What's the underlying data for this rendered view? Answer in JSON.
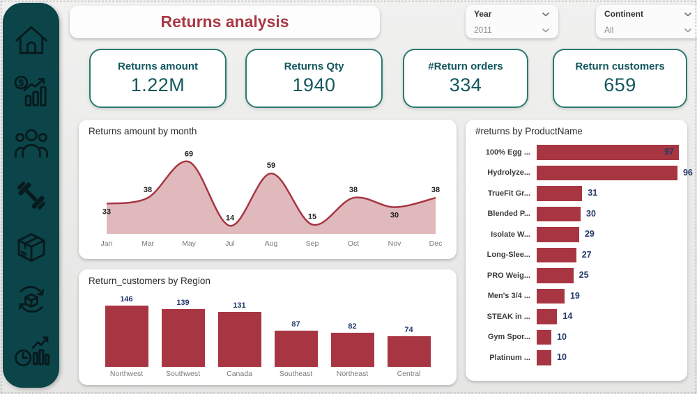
{
  "header": {
    "title": "Returns analysis"
  },
  "filters": {
    "year": {
      "label": "Year",
      "value": "2011"
    },
    "continent": {
      "label": "Continent",
      "value": "All"
    }
  },
  "sidebar": {
    "icons": [
      "home",
      "sales-finance",
      "customers",
      "fitness-products",
      "package",
      "product-returns",
      "history-stats"
    ]
  },
  "kpis": [
    {
      "label": "Returns amount",
      "value": "1.22M"
    },
    {
      "label": "Returns Qty",
      "value": "1940"
    },
    {
      "label": "#Return orders",
      "value": "334"
    },
    {
      "label": "Return customers",
      "value": "659"
    }
  ],
  "chart_data": [
    {
      "type": "area",
      "title": "Returns amount by month",
      "x": [
        "Jan",
        "Mar",
        "May",
        "Jul",
        "Aug",
        "Sep",
        "Oct",
        "Nov",
        "Dec"
      ],
      "values": [
        33,
        38,
        69,
        14,
        59,
        15,
        38,
        30,
        38
      ],
      "label_side": [
        "below",
        "above",
        "above",
        "above",
        "above",
        "above",
        "above",
        "below",
        "above"
      ],
      "ylim": [
        7,
        80
      ],
      "grid": false,
      "xlabel": "",
      "ylabel": ""
    },
    {
      "type": "bar",
      "title": "Return_customers by Region",
      "categories": [
        "Northwest",
        "Southwest",
        "Canada",
        "Southeast",
        "Northeast",
        "Central"
      ],
      "values": [
        146,
        139,
        131,
        87,
        82,
        74
      ],
      "ylim": [
        0,
        160
      ],
      "grid": false
    },
    {
      "type": "bar-horizontal",
      "title": "#returns by ProductName",
      "categories": [
        "100% Egg ...",
        "Hydrolyze...",
        "TrueFit Gr...",
        "Blended P...",
        "Isolate W...",
        "Long-Slee...",
        "PRO Weig...",
        "Men's 3/4 ...",
        "STEAK in ...",
        "Gym Spor...",
        "Platinum ..."
      ],
      "values": [
        97,
        96,
        31,
        30,
        29,
        27,
        25,
        19,
        14,
        10,
        10
      ],
      "xlim": [
        0,
        100
      ],
      "legend": "none"
    }
  ],
  "colors": {
    "red": "#A73642",
    "area_fill": "rgba(167,54,66,0.35)",
    "sidebar_teal": "#0B454A",
    "kpi_teal": "#12575D",
    "kpi_border": "#2B7A6F",
    "navy_label": "#24396B"
  }
}
